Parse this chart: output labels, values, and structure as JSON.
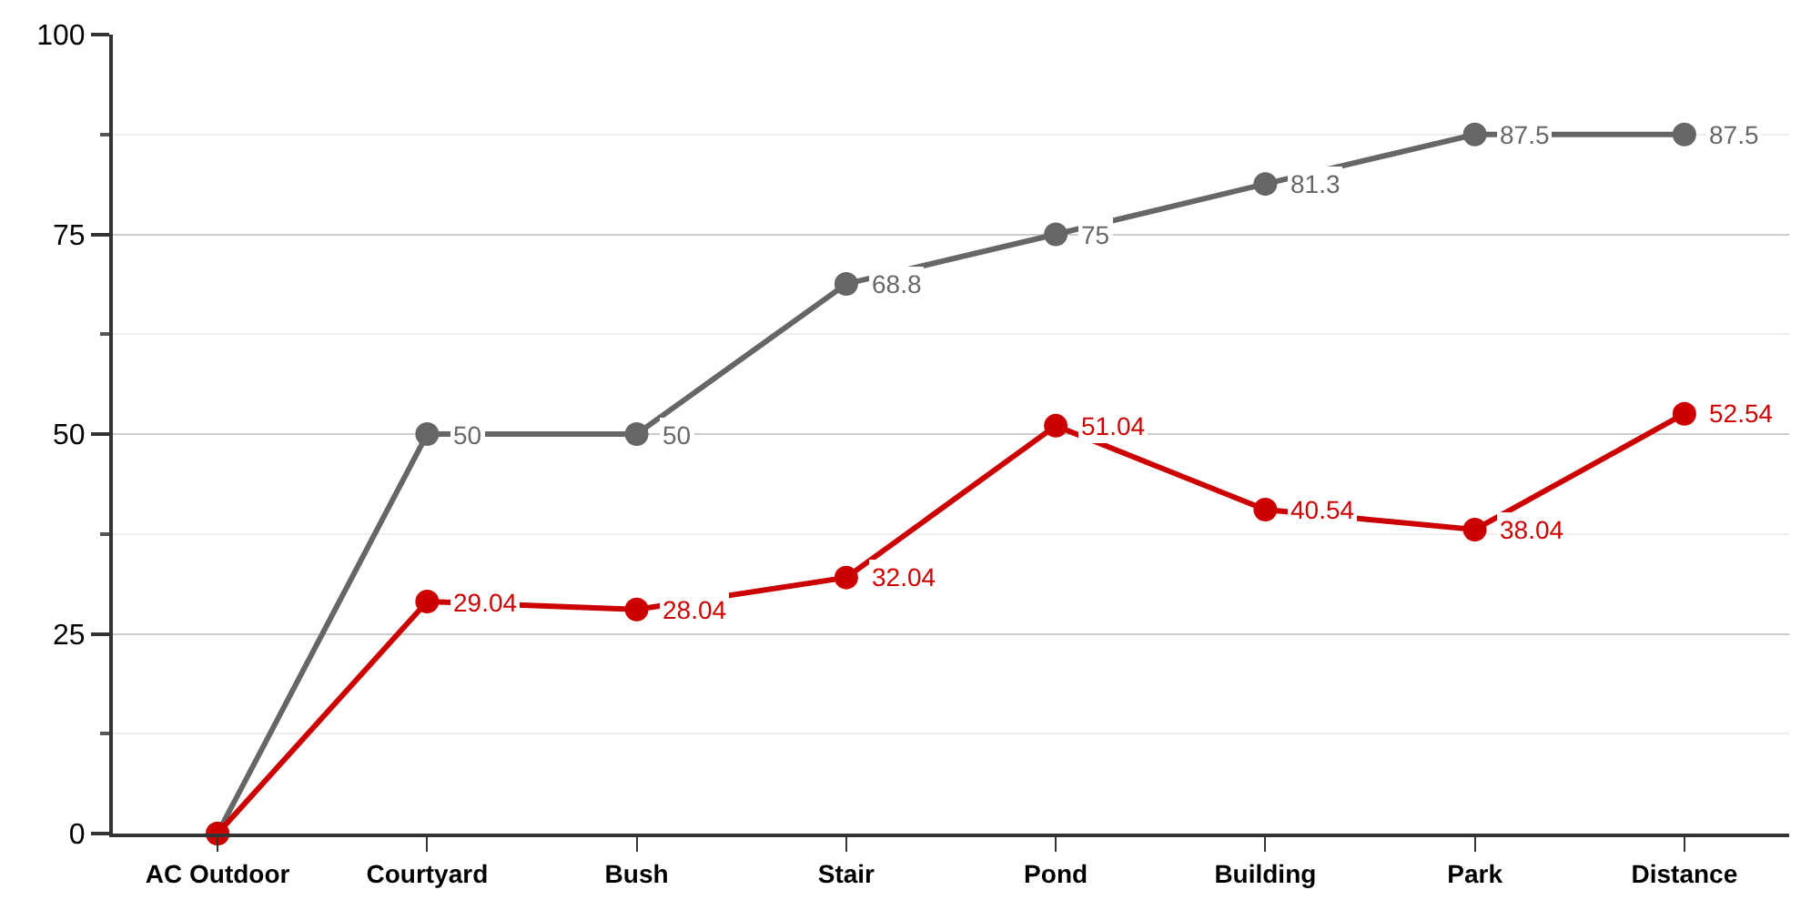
{
  "chart_data": {
    "type": "line",
    "categories": [
      "AC Outdoor",
      "Courtyard",
      "Bush",
      "Stair",
      "Pond",
      "Building",
      "Park",
      "Distance"
    ],
    "series": [
      {
        "color": "#666666",
        "values": [
          0,
          50,
          50,
          68.8,
          75,
          81.3,
          87.5,
          87.5
        ],
        "value_labels": [
          null,
          "50",
          "50",
          "68.8",
          "75",
          "81.3",
          "87.5",
          "87.5"
        ]
      },
      {
        "color": "#cc0000",
        "values": [
          0,
          29.04,
          28.04,
          32.04,
          51.04,
          40.54,
          38.04,
          52.54
        ],
        "value_labels": [
          null,
          "29.04",
          "28.04",
          "32.04",
          "51.04",
          "40.54",
          "38.04",
          "52.54"
        ]
      }
    ],
    "ylim": [
      0,
      100
    ],
    "yticks": [
      0,
      25,
      50,
      75,
      100
    ],
    "grid": "y",
    "marker": "circle",
    "line_style": "solid",
    "legend": false
  }
}
